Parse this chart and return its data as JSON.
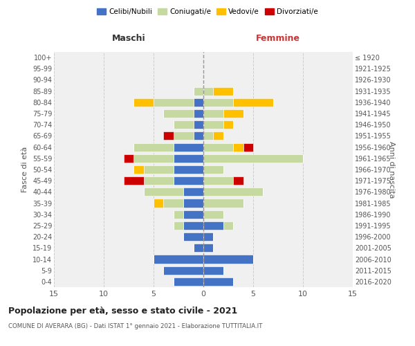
{
  "age_groups": [
    "0-4",
    "5-9",
    "10-14",
    "15-19",
    "20-24",
    "25-29",
    "30-34",
    "35-39",
    "40-44",
    "45-49",
    "50-54",
    "55-59",
    "60-64",
    "65-69",
    "70-74",
    "75-79",
    "80-84",
    "85-89",
    "90-94",
    "95-99",
    "100+"
  ],
  "birth_years": [
    "2016-2020",
    "2011-2015",
    "2006-2010",
    "2001-2005",
    "1996-2000",
    "1991-1995",
    "1986-1990",
    "1981-1985",
    "1976-1980",
    "1971-1975",
    "1966-1970",
    "1961-1965",
    "1956-1960",
    "1951-1955",
    "1946-1950",
    "1941-1945",
    "1936-1940",
    "1931-1935",
    "1926-1930",
    "1921-1925",
    "≤ 1920"
  ],
  "maschi": {
    "celibi": [
      3,
      4,
      5,
      1,
      2,
      2,
      2,
      2,
      2,
      3,
      3,
      3,
      3,
      1,
      1,
      1,
      1,
      0,
      0,
      0,
      0
    ],
    "coniugati": [
      0,
      0,
      0,
      0,
      0,
      1,
      1,
      2,
      4,
      3,
      3,
      4,
      4,
      2,
      2,
      3,
      4,
      1,
      0,
      0,
      0
    ],
    "vedovi": [
      0,
      0,
      0,
      0,
      0,
      0,
      0,
      1,
      0,
      0,
      1,
      0,
      0,
      0,
      0,
      0,
      2,
      0,
      0,
      0,
      0
    ],
    "divorziati": [
      0,
      0,
      0,
      0,
      0,
      0,
      0,
      0,
      0,
      2,
      0,
      1,
      0,
      1,
      0,
      0,
      0,
      0,
      0,
      0,
      0
    ]
  },
  "femmine": {
    "nubili": [
      3,
      2,
      5,
      1,
      1,
      2,
      0,
      0,
      0,
      0,
      0,
      0,
      0,
      0,
      0,
      0,
      0,
      0,
      0,
      0,
      0
    ],
    "coniugate": [
      0,
      0,
      0,
      0,
      0,
      1,
      2,
      4,
      6,
      3,
      2,
      10,
      3,
      1,
      2,
      2,
      3,
      1,
      0,
      0,
      0
    ],
    "vedove": [
      0,
      0,
      0,
      0,
      0,
      0,
      0,
      0,
      0,
      0,
      0,
      0,
      1,
      1,
      1,
      2,
      4,
      2,
      0,
      0,
      0
    ],
    "divorziate": [
      0,
      0,
      0,
      0,
      0,
      0,
      0,
      0,
      0,
      1,
      0,
      0,
      1,
      0,
      0,
      0,
      0,
      0,
      0,
      0,
      0
    ]
  },
  "color_celibi": "#4472c4",
  "color_coniugati": "#c5d9a0",
  "color_vedovi": "#ffc000",
  "color_divorziati": "#cc0000",
  "xlim": 15,
  "title": "Popolazione per età, sesso e stato civile - 2021",
  "subtitle": "COMUNE DI AVERARA (BG) - Dati ISTAT 1° gennaio 2021 - Elaborazione TUTTITALIA.IT",
  "ylabel_left": "Fasce di età",
  "ylabel_right": "Anni di nascita",
  "xlabel_maschi": "Maschi",
  "xlabel_femmine": "Femmine",
  "bg_color": "#ffffff",
  "plot_bg": "#f0f0f0",
  "grid_color": "#cccccc"
}
